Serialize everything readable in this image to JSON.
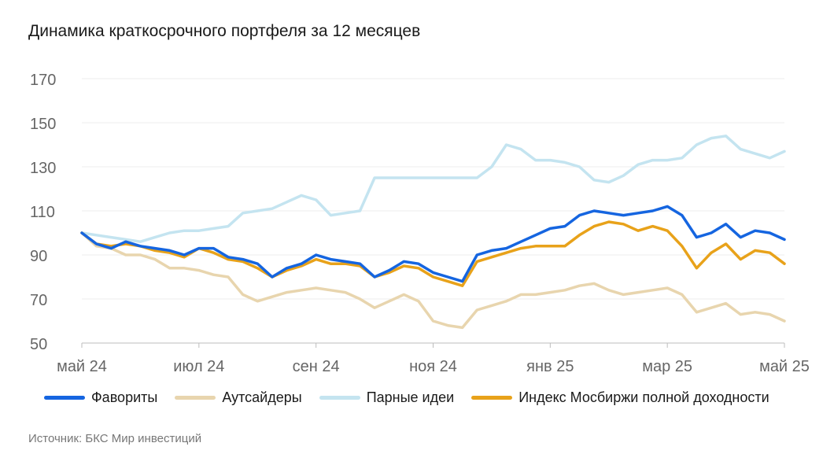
{
  "title": "Динамика краткосрочного портфеля за 12 месяцев",
  "source": "Источник: БКС Мир инвестиций",
  "chart_data": {
    "type": "line",
    "ylim": [
      50,
      170
    ],
    "yticks": [
      50,
      70,
      90,
      110,
      130,
      150,
      170
    ],
    "xlim": [
      0,
      12
    ],
    "xtick_labels": [
      "май 24",
      "июл 24",
      "сен 24",
      "ноя 24",
      "янв 25",
      "мар 25",
      "май 25"
    ],
    "xtick_positions": [
      0,
      2,
      4,
      6,
      8,
      10,
      12
    ],
    "grid": true,
    "legend_position": "bottom",
    "series": [
      {
        "name": "Фавориты",
        "color": "#1565e0",
        "x": [
          0,
          0.25,
          0.5,
          0.75,
          1,
          1.25,
          1.5,
          1.75,
          2,
          2.25,
          2.5,
          2.75,
          3,
          3.25,
          3.5,
          3.75,
          4,
          4.25,
          4.5,
          4.75,
          5,
          5.25,
          5.5,
          5.75,
          6,
          6.25,
          6.5,
          6.75,
          7,
          7.25,
          7.5,
          7.75,
          8,
          8.25,
          8.5,
          8.75,
          9,
          9.25,
          9.5,
          9.75,
          10,
          10.25,
          10.5,
          10.75,
          11,
          11.25,
          11.5,
          11.75,
          12
        ],
        "values": [
          100,
          95,
          93,
          96,
          94,
          93,
          92,
          90,
          93,
          93,
          89,
          88,
          86,
          80,
          84,
          86,
          90,
          88,
          87,
          86,
          80,
          83,
          87,
          86,
          82,
          80,
          78,
          90,
          92,
          93,
          96,
          99,
          102,
          103,
          108,
          110,
          109,
          108,
          109,
          110,
          112,
          108,
          98,
          100,
          104,
          98,
          101,
          100,
          97
        ]
      },
      {
        "name": "Аутсайдеры",
        "color": "#e8d5ae",
        "x": [
          0,
          0.25,
          0.5,
          0.75,
          1,
          1.25,
          1.5,
          1.75,
          2,
          2.25,
          2.5,
          2.75,
          3,
          3.25,
          3.5,
          3.75,
          4,
          4.25,
          4.5,
          4.75,
          5,
          5.25,
          5.5,
          5.75,
          6,
          6.25,
          6.5,
          6.75,
          7,
          7.25,
          7.5,
          7.75,
          8,
          8.25,
          8.5,
          8.75,
          9,
          9.25,
          9.5,
          9.75,
          10,
          10.25,
          10.5,
          10.75,
          11,
          11.25,
          11.5,
          11.75,
          12
        ],
        "values": [
          100,
          94,
          93,
          90,
          90,
          88,
          84,
          84,
          83,
          81,
          80,
          72,
          69,
          71,
          73,
          74,
          75,
          74,
          73,
          70,
          66,
          69,
          72,
          69,
          60,
          58,
          57,
          65,
          67,
          69,
          72,
          72,
          73,
          74,
          76,
          77,
          74,
          72,
          73,
          74,
          75,
          72,
          64,
          66,
          68,
          63,
          64,
          63,
          60
        ]
      },
      {
        "name": "Парные идеи",
        "color": "#c4e4f0",
        "x": [
          0,
          0.25,
          0.5,
          0.75,
          1,
          1.25,
          1.5,
          1.75,
          2,
          2.25,
          2.5,
          2.75,
          3,
          3.25,
          3.5,
          3.75,
          4,
          4.25,
          4.5,
          4.75,
          5,
          5.25,
          5.5,
          5.75,
          6,
          6.25,
          6.5,
          6.75,
          7,
          7.25,
          7.5,
          7.75,
          8,
          8.25,
          8.5,
          8.75,
          9,
          9.25,
          9.5,
          9.75,
          10,
          10.25,
          10.5,
          10.75,
          11,
          11.25,
          11.5,
          11.75,
          12
        ],
        "values": [
          100,
          99,
          98,
          97,
          96,
          98,
          100,
          101,
          101,
          102,
          103,
          109,
          110,
          111,
          114,
          117,
          115,
          108,
          109,
          110,
          125,
          125,
          125,
          125,
          125,
          125,
          125,
          125,
          130,
          140,
          138,
          133,
          133,
          132,
          130,
          124,
          123,
          126,
          131,
          133,
          133,
          134,
          140,
          143,
          144,
          138,
          136,
          134,
          137
        ]
      },
      {
        "name": "Индекс Мосбиржи полной доходности",
        "color": "#e8a21a",
        "x": [
          0,
          0.25,
          0.5,
          0.75,
          1,
          1.25,
          1.5,
          1.75,
          2,
          2.25,
          2.5,
          2.75,
          3,
          3.25,
          3.5,
          3.75,
          4,
          4.25,
          4.5,
          4.75,
          5,
          5.25,
          5.5,
          5.75,
          6,
          6.25,
          6.5,
          6.75,
          7,
          7.25,
          7.5,
          7.75,
          8,
          8.25,
          8.5,
          8.75,
          9,
          9.25,
          9.5,
          9.75,
          10,
          10.25,
          10.5,
          10.75,
          11,
          11.25,
          11.5,
          11.75,
          12
        ],
        "values": [
          100,
          95,
          94,
          95,
          94,
          92,
          91,
          89,
          93,
          91,
          88,
          87,
          84,
          80,
          83,
          85,
          88,
          86,
          86,
          85,
          80,
          82,
          85,
          84,
          80,
          78,
          76,
          87,
          89,
          91,
          93,
          94,
          94,
          94,
          99,
          103,
          105,
          104,
          101,
          103,
          101,
          94,
          84,
          91,
          95,
          88,
          92,
          91,
          86
        ]
      }
    ]
  }
}
